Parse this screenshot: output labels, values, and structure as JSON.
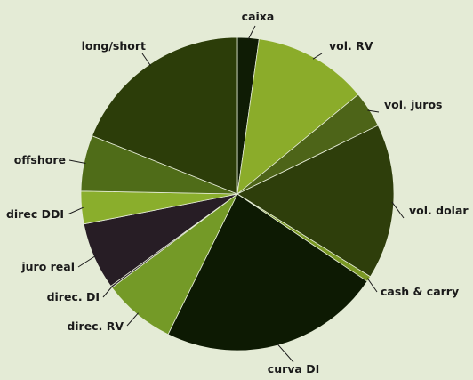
{
  "chart_data": {
    "type": "pie",
    "title": "",
    "slices": [
      {
        "label": "caixa",
        "value": 2.3,
        "color": "#0f1c05"
      },
      {
        "label": "vol. RV",
        "value": 12.3,
        "color": "#8bac2a"
      },
      {
        "label": "vol. juros",
        "value": 3.9,
        "color": "#4d6418"
      },
      {
        "label": "vol. dolar",
        "value": 16.7,
        "color": "#2e3e0b"
      },
      {
        "label": "cash & carry",
        "value": 0.6,
        "color": "#7a9824"
      },
      {
        "label": "curva DI",
        "value": 23.8,
        "color": "#0d1a03"
      },
      {
        "label": "direc. RV",
        "value": 7.8,
        "color": "#749a27"
      },
      {
        "label": "direc. DI",
        "value": 0.2,
        "color": "#2a1e2a"
      },
      {
        "label": "juro real",
        "value": 7.2,
        "color": "#271d25"
      },
      {
        "label": "direc DDI",
        "value": 3.5,
        "color": "#8aae2c"
      },
      {
        "label": "offshore",
        "value": 6.0,
        "color": "#4f6c18"
      },
      {
        "label": "long/short",
        "value": 19.7,
        "color": "#2c3d09"
      }
    ],
    "legend": "none",
    "labels": "outside with leader lines"
  }
}
